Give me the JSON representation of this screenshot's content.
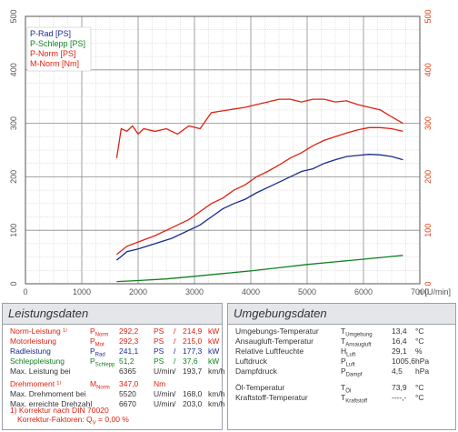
{
  "chart_data": {
    "type": "line",
    "x_label": "n [U/min]",
    "x_ticks": [
      0,
      1000,
      2000,
      3000,
      4000,
      5000,
      6000,
      7000
    ],
    "y_left_ticks": [
      0,
      100,
      200,
      300,
      400,
      500
    ],
    "y_right_ticks": [
      0,
      100,
      200,
      300,
      400,
      500
    ],
    "xlim": [
      0,
      7000
    ],
    "ylim": [
      0,
      500
    ],
    "grid": true,
    "legend_position": "top-left",
    "series": [
      {
        "name": "P-Rad [PS]",
        "color": "#1a2a90",
        "x": [
          1620,
          1800,
          2000,
          2300,
          2600,
          2900,
          3100,
          3300,
          3500,
          3700,
          3900,
          4100,
          4300,
          4500,
          4700,
          4900,
          5100,
          5300,
          5500,
          5700,
          5900,
          6100,
          6300,
          6500,
          6700
        ],
        "y": [
          44,
          60,
          65,
          75,
          85,
          100,
          110,
          125,
          140,
          150,
          158,
          170,
          180,
          190,
          200,
          210,
          215,
          225,
          232,
          238,
          240,
          242,
          241,
          238,
          232
        ]
      },
      {
        "name": "P-Schlepp [PS]",
        "color": "#108020",
        "x": [
          1620,
          2000,
          2500,
          3000,
          3500,
          4000,
          4500,
          5000,
          5500,
          6000,
          6500,
          6700
        ],
        "y": [
          4,
          6,
          9,
          14,
          19,
          24,
          30,
          36,
          41,
          46,
          51,
          53
        ]
      },
      {
        "name": "P-Norm [PS]",
        "color": "#e02010",
        "x": [
          1620,
          1800,
          2000,
          2300,
          2600,
          2900,
          3100,
          3300,
          3500,
          3700,
          3900,
          4100,
          4300,
          4500,
          4700,
          4900,
          5100,
          5300,
          5500,
          5700,
          5900,
          6100,
          6300,
          6500,
          6700
        ],
        "y": [
          55,
          70,
          78,
          90,
          105,
          120,
          135,
          150,
          160,
          175,
          185,
          200,
          210,
          222,
          235,
          245,
          258,
          268,
          275,
          282,
          288,
          292,
          292,
          290,
          285
        ]
      },
      {
        "name": "M-Norm [Nm]",
        "color": "#e02010",
        "x": [
          1620,
          1700,
          1800,
          1900,
          2000,
          2100,
          2300,
          2500,
          2700,
          2900,
          3100,
          3300,
          3600,
          3900,
          4100,
          4300,
          4500,
          4700,
          4900,
          5100,
          5300,
          5500,
          5700,
          5900,
          6100,
          6300,
          6500,
          6700
        ],
        "y": [
          235,
          290,
          285,
          295,
          280,
          290,
          285,
          290,
          280,
          295,
          290,
          320,
          325,
          330,
          335,
          340,
          345,
          345,
          340,
          345,
          345,
          340,
          342,
          335,
          330,
          325,
          312,
          300
        ]
      }
    ]
  },
  "legend": [
    {
      "label": "P-Rad [PS]",
      "color": "#1a2a90"
    },
    {
      "label": "P-Schlepp [PS]",
      "color": "#108020"
    },
    {
      "label": "P-Norm [PS]",
      "color": "#e02010"
    },
    {
      "label": "M-Norm [Nm]",
      "color": "#e02010"
    }
  ],
  "leistung": {
    "title": "Leistungsdaten",
    "rows": [
      {
        "label": "Norm-Leistung ¹⁾",
        "sym": "P",
        "sub": "Norm",
        "v1": "292,2",
        "u1": "PS",
        "sep": "/",
        "v2": "214,9",
        "u2": "kW",
        "color": "red"
      },
      {
        "label": "Motorleistung",
        "sym": "P",
        "sub": "Mot",
        "v1": "292,3",
        "u1": "PS",
        "sep": "/",
        "v2": "215,0",
        "u2": "kW",
        "color": "red"
      },
      {
        "label": "Radleistung",
        "sym": "P",
        "sub": "Rad",
        "v1": "241,1",
        "u1": "PS",
        "sep": "/",
        "v2": "177,3",
        "u2": "kW",
        "color": "blue"
      },
      {
        "label": "Schleppleistung",
        "sym": "P",
        "sub": "Schlepp",
        "v1": "51,2",
        "u1": "PS",
        "sep": "/",
        "v2": "37,6",
        "u2": "kW",
        "color": "green"
      },
      {
        "label": "Max. Leistung bei",
        "sym": "",
        "sub": "",
        "v1": "6365",
        "u1": "U/min",
        "sep": "/",
        "v2": "193,7",
        "u2": "km/h",
        "color": "gray"
      }
    ],
    "rows2": [
      {
        "label": "Drehmoment ¹⁾",
        "sym": "M",
        "sub": "Norm",
        "v1": "347,0",
        "u1": "Nm",
        "sep": "",
        "v2": "",
        "u2": "",
        "color": "red"
      },
      {
        "label": "Max. Drehmoment bei",
        "sym": "",
        "sub": "",
        "v1": "5520",
        "u1": "U/min",
        "sep": "/",
        "v2": "168,0",
        "u2": "km/h",
        "color": "gray"
      },
      {
        "label": "Max. erreichte Drehzahl",
        "sym": "",
        "sub": "",
        "v1": "6670",
        "u1": "U/min",
        "sep": "/",
        "v2": "203,0",
        "u2": "km/h",
        "color": "gray"
      }
    ],
    "footnote1": "1) Korrektur nach DIN 70020",
    "footnote2": "Korrektur-Faktoren: Q",
    "footnote2_sub": "V",
    "footnote2_val": " =   0,00 %"
  },
  "umgebung": {
    "title": "Umgebungsdaten",
    "rows": [
      {
        "label": "Umgebungs-Temperatur",
        "sym": "T",
        "sub": "Umgebung",
        "val": "13,4",
        "unit": "°C"
      },
      {
        "label": "Ansaugluft-Temperatur",
        "sym": "T",
        "sub": "Ansaugluft",
        "val": "16,4",
        "unit": "°C"
      },
      {
        "label": "Relative Luftfeuchte",
        "sym": "H",
        "sub": "Luft",
        "val": "29,1",
        "unit": "%"
      },
      {
        "label": "Luftdruck",
        "sym": "P",
        "sub": "Luft",
        "val": "1005,6",
        "unit": "hPa"
      },
      {
        "label": "Dampfdruck",
        "sym": "P",
        "sub": "Dampf",
        "val": "4,5",
        "unit": "hPa"
      }
    ],
    "rows2": [
      {
        "label": "Öl-Temperatur",
        "sym": "T",
        "sub": "Öl",
        "val": "73,9",
        "unit": "°C"
      },
      {
        "label": "Kraftstoff-Temperatur",
        "sym": "T",
        "sub": "Kraftstoff",
        "val": "----,-",
        "unit": "°C"
      }
    ]
  }
}
